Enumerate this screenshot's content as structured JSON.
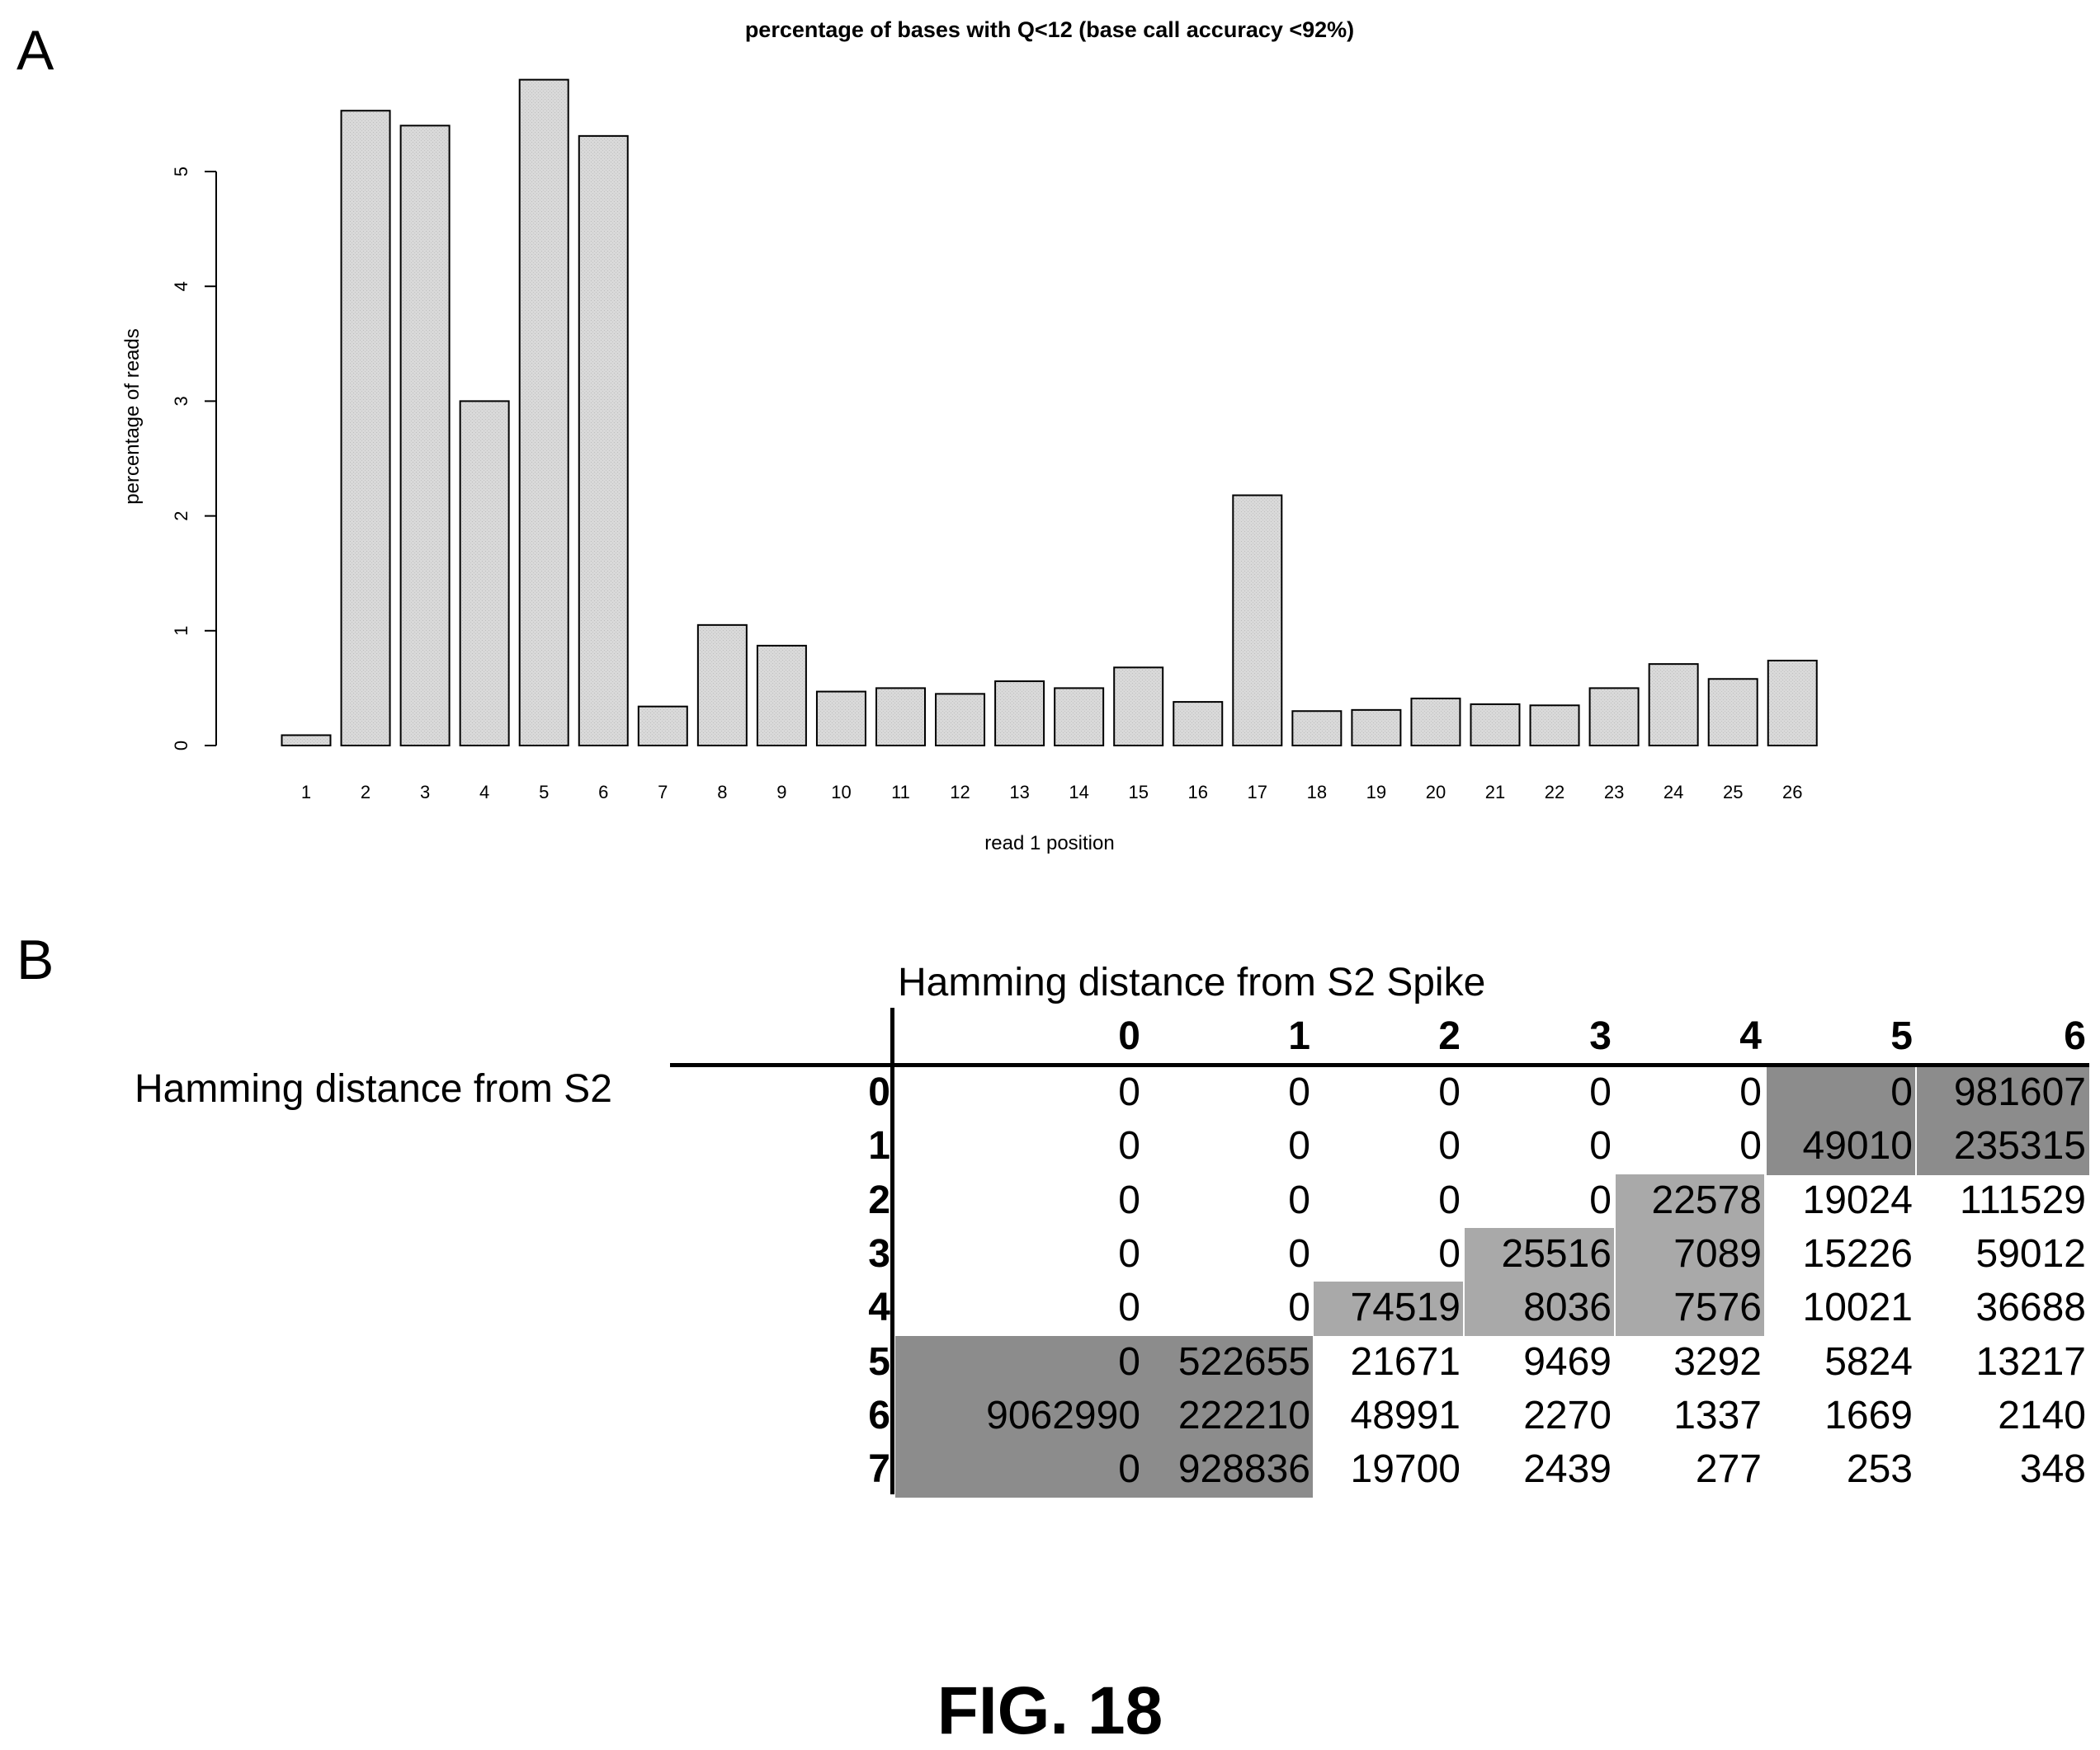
{
  "panels": {
    "a": "A",
    "b": "B"
  },
  "figure_label": "FIG. 18",
  "chart_data": {
    "type": "bar",
    "title": "percentage of bases with Q<12 (base call accuracy <92%)",
    "xlabel": "read 1 position",
    "ylabel": "percentage of reads",
    "categories": [
      "1",
      "2",
      "3",
      "4",
      "5",
      "6",
      "7",
      "8",
      "9",
      "10",
      "11",
      "12",
      "13",
      "14",
      "15",
      "16",
      "17",
      "18",
      "19",
      "20",
      "21",
      "22",
      "23",
      "24",
      "25",
      "26"
    ],
    "values": [
      0.09,
      5.53,
      5.4,
      3.0,
      5.8,
      5.31,
      0.34,
      1.05,
      0.87,
      0.47,
      0.5,
      0.45,
      0.56,
      0.5,
      0.68,
      0.38,
      2.18,
      0.3,
      0.31,
      0.41,
      0.36,
      0.35,
      0.5,
      0.71,
      0.58,
      0.74
    ],
    "yticks": [
      "0",
      "1",
      "2",
      "3",
      "4",
      "5"
    ],
    "ylim": [
      0,
      6
    ],
    "bar_color": "#d6d6d6",
    "grid": false
  },
  "table": {
    "col_title": "Hamming distance from S2 Spike",
    "row_title": "Hamming distance from S2",
    "col_headers": [
      "0",
      "1",
      "2",
      "3",
      "4",
      "5",
      "6"
    ],
    "rows": [
      {
        "label": "0",
        "cells": [
          "0",
          "0",
          "0",
          "0",
          "0",
          "0",
          "981607"
        ]
      },
      {
        "label": "1",
        "cells": [
          "0",
          "0",
          "0",
          "0",
          "0",
          "49010",
          "235315"
        ]
      },
      {
        "label": "2",
        "cells": [
          "0",
          "0",
          "0",
          "0",
          "22578",
          "19024",
          "111529"
        ]
      },
      {
        "label": "3",
        "cells": [
          "0",
          "0",
          "0",
          "25516",
          "7089",
          "15226",
          "59012"
        ]
      },
      {
        "label": "4",
        "cells": [
          "0",
          "0",
          "74519",
          "8036",
          "7576",
          "10021",
          "36688"
        ]
      },
      {
        "label": "5",
        "cells": [
          "0",
          "522655",
          "21671",
          "9469",
          "3292",
          "5824",
          "13217"
        ]
      },
      {
        "label": "6",
        "cells": [
          "9062990",
          "222210",
          "48991",
          "2270",
          "1337",
          "1669",
          "2140"
        ]
      },
      {
        "label": "7",
        "cells": [
          "0",
          "928836",
          "19700",
          "2439",
          "277",
          "253",
          "348"
        ]
      }
    ],
    "shaded": [
      [
        0,
        5
      ],
      [
        0,
        6
      ],
      [
        1,
        5
      ],
      [
        1,
        6
      ],
      [
        2,
        4
      ],
      [
        3,
        3
      ],
      [
        3,
        4
      ],
      [
        4,
        2
      ],
      [
        4,
        3
      ],
      [
        4,
        4
      ],
      [
        5,
        0
      ],
      [
        5,
        1
      ],
      [
        6,
        0
      ],
      [
        6,
        1
      ],
      [
        7,
        0
      ],
      [
        7,
        1
      ]
    ],
    "shade_color_dark": "#8c8c8c",
    "shade_color_light": "#a9a9a9"
  }
}
